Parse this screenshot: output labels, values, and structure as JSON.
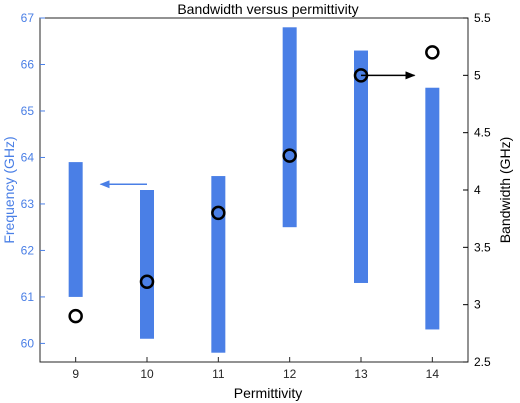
{
  "chart_data": {
    "type": "bar",
    "title": "Bandwidth versus permittivity",
    "xlabel": "Permittivity",
    "ylabel_left": "Frequency (GHz)",
    "ylabel_right": "Bandwidth (GHz)",
    "x_ticks": [
      "9",
      "10",
      "11",
      "12",
      "13",
      "14"
    ],
    "x_range": [
      8.5,
      14.5
    ],
    "left_axis": {
      "range": [
        59.6,
        67.0
      ],
      "ticks": [
        60,
        61,
        62,
        63,
        64,
        65,
        66,
        67
      ],
      "tick_labels": [
        "60",
        "61",
        "62",
        "63",
        "64",
        "65",
        "66",
        "67"
      ],
      "color": "#4a7fe6"
    },
    "right_axis": {
      "range": [
        2.5,
        5.5
      ],
      "ticks": [
        2.5,
        3,
        3.5,
        4,
        4.5,
        5,
        5.5
      ],
      "tick_labels": [
        "2.5",
        "3",
        "3.5",
        "4",
        "4.5",
        "5",
        "5.5"
      ],
      "color": "#000000"
    },
    "series": [
      {
        "kind": "range-bar",
        "axis": "left",
        "color": "#4a7fe6",
        "x": [
          9,
          10,
          11,
          12,
          13,
          14
        ],
        "low": [
          61.0,
          60.1,
          59.8,
          62.5,
          61.3,
          60.3
        ],
        "high": [
          63.9,
          63.3,
          63.6,
          66.8,
          66.3,
          65.5
        ]
      },
      {
        "kind": "scatter",
        "axis": "right",
        "marker": "circle",
        "color": "#000000",
        "x": [
          9,
          10,
          11,
          12,
          13,
          14
        ],
        "values": [
          2.9,
          3.2,
          3.8,
          4.3,
          5.0,
          5.2
        ]
      }
    ],
    "annotations": [
      {
        "type": "arrow",
        "direction": "left",
        "points_to": "left-axis",
        "color": "#4a7fe6",
        "x": [
          10.0,
          9.35
        ],
        "y": 4.05,
        "y_axis": "right"
      },
      {
        "type": "arrow",
        "direction": "right",
        "points_to": "right-axis",
        "color": "#000000",
        "x": [
          13.0,
          13.75
        ],
        "y": 5.0,
        "y_axis": "right"
      }
    ],
    "grid": false,
    "legend": "none"
  }
}
